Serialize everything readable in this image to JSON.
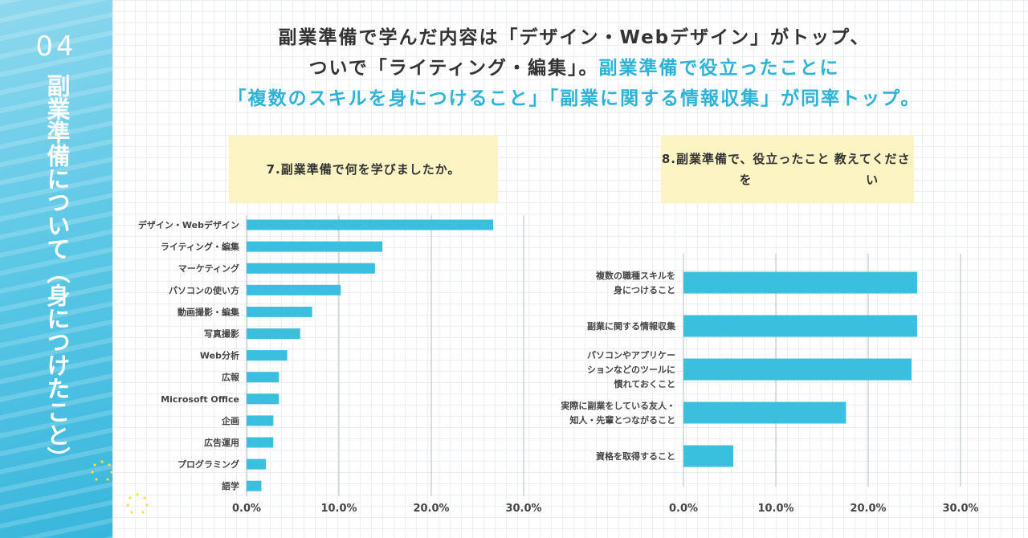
{
  "sidebar": {
    "number": "04",
    "title": "副業準備について（身につけたこと）"
  },
  "headline": {
    "line1": "副業準備で学んだ内容は「デザイン・Webデザイン」がトップ、",
    "line2_dark": "ついで「ライティング・編集」。",
    "line2_blue": "副業準備で役立ったことに",
    "line3": "「複数のスキルを身につけること」「副業に関する情報収集」が同率トップ。"
  },
  "colors": {
    "bar": "#3bbfdf",
    "accent": "#2eb3d6",
    "question_bg": "#fdf4c4",
    "sidebar": "#5cc8e6"
  },
  "chart_data": [
    {
      "type": "bar",
      "orientation": "horizontal",
      "title": "7.副業準備で何を学びましたか。",
      "categories": [
        "デザイン・Webデザイン",
        "ライティング・編集",
        "マーケティング",
        "パソコンの使い方",
        "動画撮影・編集",
        "写真撮影",
        "Web分析",
        "広報",
        "Microsoft Office",
        "企画",
        "広告運用",
        "プログラミング",
        "語学"
      ],
      "values": [
        26.7,
        14.7,
        13.9,
        10.2,
        7.1,
        5.8,
        4.4,
        3.5,
        3.5,
        2.9,
        2.9,
        2.1,
        1.6
      ],
      "xlim": [
        0,
        30
      ],
      "ticks": [
        "0.0%",
        "10.0%",
        "20.0%",
        "30.0%"
      ],
      "grid": true
    },
    {
      "type": "bar",
      "orientation": "horizontal",
      "title": "8.副業準備で、役立ったことを\n教えてください",
      "categories": [
        "複数の職種スキルを\n身につけること",
        "副業に関する情報収集",
        "パソコンやアプリケー\nションなどのツールに\n慣れておくこと",
        "実際に副業をしている友人・\n知人・先輩とつながること",
        "資格を取得すること"
      ],
      "values": [
        25.3,
        25.3,
        24.7,
        17.6,
        5.4
      ],
      "xlim": [
        0,
        30
      ],
      "ticks": [
        "0.0%",
        "10.0%",
        "20.0%",
        "30.0%"
      ],
      "grid": true
    }
  ]
}
